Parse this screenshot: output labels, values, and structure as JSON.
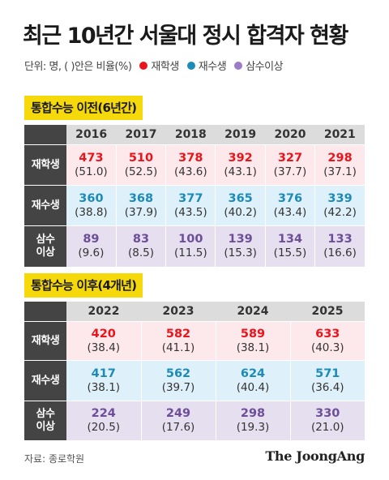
{
  "title": "최근 10년간 서울대 정시 합격자 현황",
  "legend": {
    "unit": "단위: 명, ( )안은 비율(%)",
    "items": [
      {
        "label": "재학생",
        "color": "#e8161c"
      },
      {
        "label": "재수생",
        "color": "#1c8bb7"
      },
      {
        "label": "삼수이상",
        "color": "#9b7cc7"
      }
    ]
  },
  "chart_data": [
    {
      "type": "table",
      "title": "통합수능 이전(6년간)",
      "columns": [
        "2016",
        "2017",
        "2018",
        "2019",
        "2020",
        "2021"
      ],
      "rows": [
        {
          "label": "재학생",
          "values": [
            "473",
            "510",
            "378",
            "392",
            "327",
            "298"
          ],
          "ratios": [
            "(51.0)",
            "(52.5)",
            "(43.6)",
            "(43.1)",
            "(37.7)",
            "(37.1)"
          ]
        },
        {
          "label": "재수생",
          "values": [
            "360",
            "368",
            "377",
            "365",
            "376",
            "339"
          ],
          "ratios": [
            "(38.8)",
            "(37.9)",
            "(43.5)",
            "(40.2)",
            "(43.4)",
            "(42.2)"
          ]
        },
        {
          "label": "삼수이상",
          "values": [
            "89",
            "83",
            "100",
            "139",
            "134",
            "133"
          ],
          "ratios": [
            "(9.6)",
            "(8.5)",
            "(11.5)",
            "(15.3)",
            "(15.5)",
            "(16.6)"
          ]
        }
      ]
    },
    {
      "type": "table",
      "title": "통합수능 이후(4개년)",
      "columns": [
        "2022",
        "2023",
        "2024",
        "2025"
      ],
      "rows": [
        {
          "label": "재학생",
          "values": [
            "420",
            "582",
            "589",
            "633"
          ],
          "ratios": [
            "(38.4)",
            "(41.1)",
            "(38.1)",
            "(40.3)"
          ]
        },
        {
          "label": "재수생",
          "values": [
            "417",
            "562",
            "624",
            "571"
          ],
          "ratios": [
            "(38.1)",
            "(39.7)",
            "(40.4)",
            "(36.4)"
          ]
        },
        {
          "label": "삼수이상",
          "values": [
            "224",
            "249",
            "298",
            "330"
          ],
          "ratios": [
            "(20.5)",
            "(17.6)",
            "(19.3)",
            "(21.0)"
          ]
        }
      ]
    }
  ],
  "row_headers": {
    "r1": "재학생",
    "r2": "재수생",
    "r3_line1": "삼수",
    "r3_line2": "이상"
  },
  "source": "자료: 종로학원",
  "logo": "The JoongAng"
}
